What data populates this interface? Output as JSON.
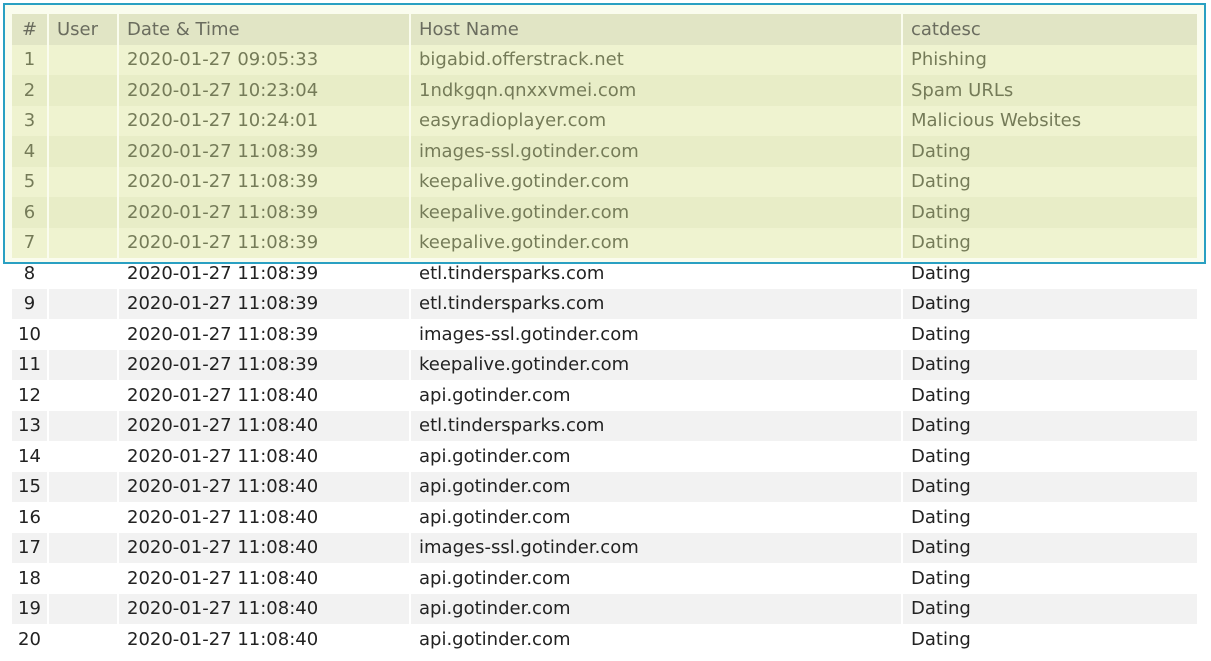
{
  "table": {
    "columns": [
      "#",
      "User",
      "Date & Time",
      "Host Name",
      "catdesc"
    ],
    "rows": [
      [
        "1",
        "",
        "2020-01-27 09:05:33",
        "bigabid.offerstrack.net",
        "Phishing"
      ],
      [
        "2",
        "",
        "2020-01-27 10:23:04",
        "1ndkgqn.qnxxvmei.com",
        "Spam URLs"
      ],
      [
        "3",
        "",
        "2020-01-27 10:24:01",
        "easyradioplayer.com",
        "Malicious Websites"
      ],
      [
        "4",
        "",
        "2020-01-27 11:08:39",
        "images-ssl.gotinder.com",
        "Dating"
      ],
      [
        "5",
        "",
        "2020-01-27 11:08:39",
        "keepalive.gotinder.com",
        "Dating"
      ],
      [
        "6",
        "",
        "2020-01-27 11:08:39",
        "keepalive.gotinder.com",
        "Dating"
      ],
      [
        "7",
        "",
        "2020-01-27 11:08:39",
        "keepalive.gotinder.com",
        "Dating"
      ],
      [
        "8",
        "",
        "2020-01-27 11:08:39",
        "etl.tindersparks.com",
        "Dating"
      ],
      [
        "9",
        "",
        "2020-01-27 11:08:39",
        "etl.tindersparks.com",
        "Dating"
      ],
      [
        "10",
        "",
        "2020-01-27 11:08:39",
        "images-ssl.gotinder.com",
        "Dating"
      ],
      [
        "11",
        "",
        "2020-01-27 11:08:39",
        "keepalive.gotinder.com",
        "Dating"
      ],
      [
        "12",
        "",
        "2020-01-27 11:08:40",
        "api.gotinder.com",
        "Dating"
      ],
      [
        "13",
        "",
        "2020-01-27 11:08:40",
        "etl.tindersparks.com",
        "Dating"
      ],
      [
        "14",
        "",
        "2020-01-27 11:08:40",
        "api.gotinder.com",
        "Dating"
      ],
      [
        "15",
        "",
        "2020-01-27 11:08:40",
        "api.gotinder.com",
        "Dating"
      ],
      [
        "16",
        "",
        "2020-01-27 11:08:40",
        "api.gotinder.com",
        "Dating"
      ],
      [
        "17",
        "",
        "2020-01-27 11:08:40",
        "images-ssl.gotinder.com",
        "Dating"
      ],
      [
        "18",
        "",
        "2020-01-27 11:08:40",
        "api.gotinder.com",
        "Dating"
      ],
      [
        "19",
        "",
        "2020-01-27 11:08:40",
        "api.gotinder.com",
        "Dating"
      ],
      [
        "20",
        "",
        "2020-01-27 11:08:40",
        "api.gotinder.com",
        "Dating"
      ]
    ],
    "highlighted_rows": [
      "1",
      "2",
      "3",
      "4",
      "5",
      "6",
      "7"
    ],
    "highlight_border_color": "#2aa0c2"
  }
}
